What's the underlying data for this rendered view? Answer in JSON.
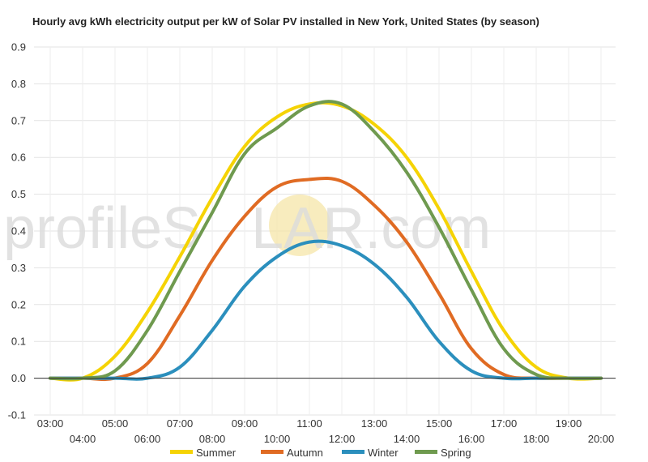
{
  "watermark": {
    "before": "profileS",
    "after": "LAR.com",
    "sun_color": "#f6e6a8"
  },
  "chart_data": {
    "type": "line",
    "title": "Hourly avg kWh electricity output per kW of Solar PV installed in New York, United States (by season)",
    "xlabel": "",
    "ylabel": "",
    "ylim": [
      -0.1,
      0.9
    ],
    "yticks": [
      "-0.1",
      "0.0",
      "0.1",
      "0.2",
      "0.3",
      "0.4",
      "0.5",
      "0.6",
      "0.7",
      "0.8",
      "0.9"
    ],
    "categories": [
      "03:00",
      "04:00",
      "05:00",
      "06:00",
      "07:00",
      "08:00",
      "09:00",
      "10:00",
      "11:00",
      "12:00",
      "13:00",
      "14:00",
      "15:00",
      "16:00",
      "17:00",
      "18:00",
      "19:00",
      "20:00"
    ],
    "grid": true,
    "legend_position": "bottom",
    "series": [
      {
        "name": "Summer",
        "color": "#f5d304",
        "values": [
          0.0,
          0.0,
          0.06,
          0.18,
          0.33,
          0.49,
          0.63,
          0.71,
          0.745,
          0.74,
          0.69,
          0.6,
          0.46,
          0.29,
          0.13,
          0.03,
          0.0,
          0.0
        ]
      },
      {
        "name": "Autumn",
        "color": "#e06b23",
        "values": [
          0.0,
          0.0,
          0.0,
          0.04,
          0.17,
          0.32,
          0.44,
          0.52,
          0.54,
          0.535,
          0.47,
          0.37,
          0.23,
          0.08,
          0.01,
          0.0,
          0.0,
          0.0
        ]
      },
      {
        "name": "Winter",
        "color": "#2b8fbd",
        "values": [
          0.0,
          0.0,
          0.0,
          0.0,
          0.03,
          0.13,
          0.25,
          0.33,
          0.37,
          0.36,
          0.31,
          0.22,
          0.1,
          0.02,
          0.0,
          0.0,
          0.0,
          0.0
        ]
      },
      {
        "name": "Spring",
        "color": "#6f9a4f",
        "values": [
          0.0,
          0.0,
          0.02,
          0.13,
          0.29,
          0.45,
          0.61,
          0.68,
          0.74,
          0.745,
          0.67,
          0.56,
          0.41,
          0.24,
          0.08,
          0.01,
          0.0,
          0.0
        ]
      }
    ]
  }
}
